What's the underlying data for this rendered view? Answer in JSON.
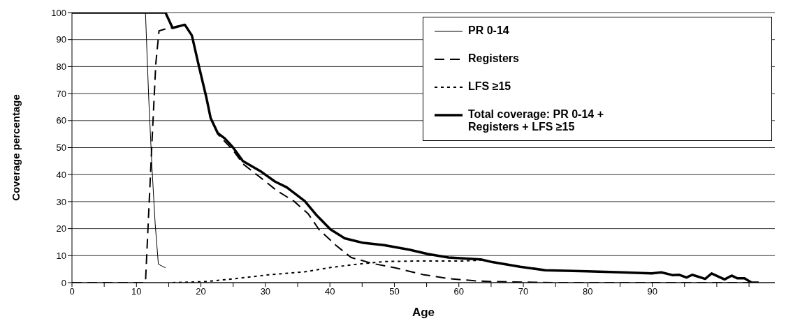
{
  "chart_data": {
    "type": "line",
    "xlabel": "Age",
    "ylabel": "Coverage percentage",
    "xlim": [
      0,
      109
    ],
    "xticks": [
      0,
      {
        "value": 5,
        "label": null
      },
      10,
      {
        "value": 15,
        "label": null
      },
      20,
      {
        "value": 25,
        "label": null
      },
      30,
      {
        "value": 35,
        "label": null
      },
      40,
      {
        "value": 45,
        "label": null
      },
      50,
      {
        "value": 55,
        "label": null
      },
      60,
      {
        "value": 65,
        "label": null
      },
      70,
      {
        "value": 75,
        "label": null
      },
      80,
      {
        "value": 85,
        "label": null
      },
      90,
      {
        "value": 95,
        "label": null
      },
      {
        "value": 100,
        "label": null
      },
      {
        "value": 105,
        "label": null
      }
    ],
    "ylim": [
      0,
      100
    ],
    "yticks": [
      0,
      10,
      20,
      30,
      40,
      50,
      60,
      70,
      80,
      90,
      100
    ],
    "grid": "y",
    "legend": "top right",
    "series": [
      {
        "name": "PR 0-14",
        "color": "#000000",
        "line_style": "solid",
        "x": [
          0,
          11.4,
          11.9,
          12.4,
          12.9,
          13.4,
          14.5
        ],
        "values": [
          100,
          100,
          68.5,
          43,
          22,
          6.8,
          5.5
        ]
      },
      {
        "name": "Registers",
        "color": "#000000",
        "line_style": "dashed",
        "x": [
          0,
          11.4,
          12.4,
          13,
          13.5,
          14.6,
          15.6,
          17.5,
          18.6,
          19.7,
          20.8,
          21.5,
          22.6,
          25,
          26.5,
          29.4,
          31.8,
          34.4,
          36.6,
          38.3,
          40.9,
          43.3,
          46.6,
          50.1,
          54.4,
          58.4,
          62.4,
          65,
          70,
          75,
          106.5
        ],
        "values": [
          0,
          0,
          51.6,
          81,
          93.2,
          94,
          94.3,
          95.5,
          91.5,
          80,
          69,
          61,
          55,
          49,
          44,
          38.6,
          34,
          30.2,
          25.6,
          19.7,
          13.9,
          9.3,
          7.1,
          5.5,
          3,
          1.5,
          0.7,
          0.4,
          0.2,
          0,
          0
        ]
      },
      {
        "name": "LFS ≥15",
        "color": "#000000",
        "line_style": "dotted",
        "x": [
          15.6,
          20.8,
          25.4,
          30.1,
          36.1,
          40.1,
          44.1,
          48.4,
          53,
          58.4,
          60.5,
          63.4
        ],
        "values": [
          0,
          0.4,
          1.5,
          2.8,
          4,
          5.6,
          6.8,
          7.8,
          8,
          8,
          8,
          8.3
        ]
      },
      {
        "name": "Total coverage: PR 0-14 + Registers + LFS ≥15",
        "color": "#000000",
        "line_style": "solid",
        "x": [
          0,
          14.5,
          15.6,
          17.5,
          18.6,
          19.7,
          20.8,
          21.5,
          22.6,
          23.7,
          25,
          26.5,
          29.4,
          31.5,
          33.3,
          36.1,
          38,
          40.1,
          42.3,
          45.2,
          48.4,
          52.3,
          55.2,
          58.4,
          63.4,
          65.2,
          69.5,
          73.4,
          79.9,
          85.3,
          89.9,
          91.4,
          93.1,
          94.2,
          95.3,
          96.2,
          98.2,
          99.2,
          101.2,
          102.3,
          103.2,
          104.3,
          105.4,
          106.5
        ],
        "values": [
          100,
          100,
          94.3,
          95.5,
          91.5,
          80,
          69,
          61,
          55.4,
          53.4,
          50,
          45,
          41,
          37.4,
          35.3,
          30.2,
          24.8,
          19.7,
          16.4,
          14.7,
          13.9,
          12.2,
          10.6,
          9.3,
          8.6,
          7.6,
          5.9,
          4.6,
          4.2,
          3.8,
          3.4,
          3.8,
          2.8,
          2.9,
          1.9,
          2.9,
          1.4,
          3.4,
          1.2,
          2.6,
          1.6,
          1.6,
          0,
          0
        ]
      }
    ]
  }
}
